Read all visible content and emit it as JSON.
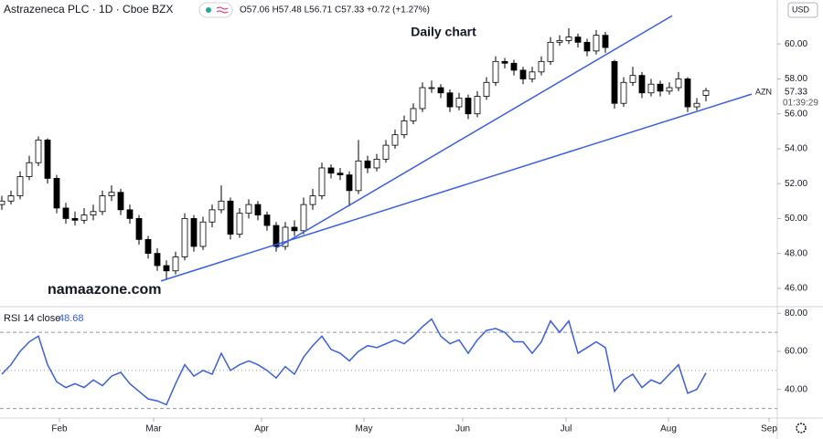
{
  "chart_data": {
    "type": "candlestick",
    "title": "Astrazeneca PLC · 1D · Cboe BZX",
    "header_values": "O57.06 H57.48 L56.71 C57.33 +0.72 (+1.27%)",
    "annotation": "Daily chart",
    "watermark": "namaazone.com",
    "currency": "USD",
    "symbol_label": "AZN",
    "countdown": "01:39:29",
    "up_color": "#ffffff",
    "down_color": "#000000",
    "candles": [
      [
        50.8,
        51.3,
        50.5,
        51.0
      ],
      [
        51.0,
        51.6,
        50.8,
        51.3
      ],
      [
        51.3,
        52.7,
        51.1,
        52.4
      ],
      [
        52.4,
        53.6,
        52.2,
        53.2
      ],
      [
        53.2,
        54.7,
        53.0,
        54.5
      ],
      [
        54.5,
        54.6,
        52.0,
        52.3
      ],
      [
        52.3,
        52.5,
        50.3,
        50.6
      ],
      [
        50.6,
        50.9,
        49.7,
        50.0
      ],
      [
        50.0,
        50.4,
        49.6,
        49.9
      ],
      [
        49.9,
        50.6,
        49.7,
        50.2
      ],
      [
        50.2,
        50.8,
        49.9,
        50.4
      ],
      [
        50.4,
        51.6,
        50.2,
        51.3
      ],
      [
        51.3,
        51.9,
        51.0,
        51.5
      ],
      [
        51.5,
        51.7,
        50.2,
        50.5
      ],
      [
        50.5,
        50.8,
        49.7,
        50.0
      ],
      [
        50.0,
        50.2,
        48.5,
        48.8
      ],
      [
        48.8,
        49.0,
        47.7,
        48.0
      ],
      [
        48.0,
        48.3,
        47.0,
        47.3
      ],
      [
        47.3,
        47.6,
        46.5,
        47.0
      ],
      [
        47.0,
        48.1,
        46.8,
        47.8
      ],
      [
        47.8,
        50.3,
        47.6,
        50.0
      ],
      [
        50.0,
        50.2,
        48.1,
        48.4
      ],
      [
        48.4,
        50.1,
        48.2,
        49.8
      ],
      [
        49.8,
        50.8,
        49.5,
        50.5
      ],
      [
        50.5,
        51.9,
        50.3,
        51.0
      ],
      [
        51.0,
        51.2,
        48.8,
        49.1
      ],
      [
        49.1,
        50.6,
        48.9,
        50.3
      ],
      [
        50.3,
        51.1,
        50.0,
        50.8
      ],
      [
        50.8,
        51.0,
        49.9,
        50.2
      ],
      [
        50.2,
        50.4,
        49.3,
        49.6
      ],
      [
        49.6,
        49.8,
        48.1,
        48.4
      ],
      [
        48.4,
        49.8,
        48.2,
        49.5
      ],
      [
        49.5,
        49.9,
        49.0,
        49.3
      ],
      [
        49.3,
        51.2,
        49.1,
        50.8
      ],
      [
        50.8,
        51.7,
        50.5,
        51.3
      ],
      [
        51.3,
        53.2,
        51.1,
        52.9
      ],
      [
        52.9,
        53.1,
        52.3,
        52.6
      ],
      [
        52.6,
        52.9,
        52.2,
        52.5
      ],
      [
        52.5,
        52.7,
        50.7,
        51.6
      ],
      [
        51.6,
        54.5,
        51.4,
        53.3
      ],
      [
        53.3,
        53.6,
        52.6,
        52.9
      ],
      [
        52.9,
        53.7,
        52.7,
        53.4
      ],
      [
        53.4,
        54.5,
        53.2,
        54.2
      ],
      [
        54.2,
        55.1,
        54.0,
        54.8
      ],
      [
        54.8,
        55.9,
        54.6,
        55.6
      ],
      [
        55.6,
        56.6,
        55.4,
        56.3
      ],
      [
        56.3,
        57.8,
        56.1,
        57.5
      ],
      [
        57.5,
        57.9,
        57.2,
        57.5
      ],
      [
        57.5,
        57.7,
        56.9,
        57.2
      ],
      [
        57.2,
        57.4,
        56.1,
        56.4
      ],
      [
        56.4,
        57.2,
        56.2,
        56.9
      ],
      [
        56.9,
        57.1,
        55.7,
        56.0
      ],
      [
        56.0,
        57.3,
        55.8,
        57.0
      ],
      [
        57.0,
        58.1,
        56.8,
        57.8
      ],
      [
        57.8,
        59.3,
        57.6,
        59.0
      ],
      [
        59.0,
        59.2,
        58.6,
        58.9
      ],
      [
        58.9,
        59.1,
        58.2,
        58.5
      ],
      [
        58.5,
        58.7,
        57.7,
        58.0
      ],
      [
        58.0,
        58.7,
        57.8,
        58.4
      ],
      [
        58.4,
        59.3,
        58.2,
        59.0
      ],
      [
        59.0,
        60.4,
        58.8,
        60.1
      ],
      [
        60.1,
        60.5,
        59.9,
        60.2
      ],
      [
        60.2,
        60.9,
        60.0,
        60.4
      ],
      [
        60.4,
        60.6,
        59.8,
        60.1
      ],
      [
        60.1,
        60.3,
        59.3,
        59.6
      ],
      [
        59.6,
        60.8,
        59.4,
        60.5
      ],
      [
        60.5,
        60.7,
        59.5,
        59.8
      ],
      [
        59.0,
        59.1,
        56.3,
        56.6
      ],
      [
        56.6,
        58.1,
        56.4,
        57.8
      ],
      [
        57.8,
        58.7,
        57.6,
        58.2
      ],
      [
        58.2,
        58.4,
        56.9,
        57.2
      ],
      [
        57.2,
        58.0,
        57.0,
        57.7
      ],
      [
        57.7,
        57.9,
        57.0,
        57.3
      ],
      [
        57.3,
        57.8,
        57.1,
        57.5
      ],
      [
        57.5,
        58.4,
        57.3,
        58.0
      ],
      [
        58.0,
        58.1,
        56.1,
        56.4
      ],
      [
        56.4,
        56.9,
        56.2,
        56.6
      ],
      [
        57.06,
        57.48,
        56.71,
        57.33
      ]
    ],
    "ylim": [
      45,
      62
    ],
    "yticks": [
      {
        "value": 46,
        "label": "46.00"
      },
      {
        "value": 48,
        "label": "48.00"
      },
      {
        "value": 50,
        "label": "50.00"
      },
      {
        "value": 52,
        "label": "52.00"
      },
      {
        "value": 54,
        "label": "54.00"
      },
      {
        "value": 56,
        "label": "56.00"
      },
      {
        "value": 58,
        "label": "58.00"
      },
      {
        "value": 60,
        "label": "60.00"
      }
    ],
    "xticks": [
      {
        "value": 6.3,
        "label": "Feb"
      },
      {
        "value": 16.6,
        "label": "Mar"
      },
      {
        "value": 28.4,
        "label": "Apr"
      },
      {
        "value": 39.6,
        "label": "May"
      },
      {
        "value": 50.4,
        "label": "Jun"
      },
      {
        "value": 61.7,
        "label": "Jul"
      },
      {
        "value": 72.9,
        "label": "Aug"
      },
      {
        "value": 83.9,
        "label": "Sep"
      }
    ],
    "trend_lines": [
      {
        "from": [
          17.4,
          46.42
        ],
        "to": [
          82,
          57.13
        ],
        "color": "#3a5fe5"
      },
      {
        "from": [
          30,
          48.3
        ],
        "to": [
          73.3,
          61.62
        ],
        "color": "#3a5fe5"
      }
    ],
    "rsi": {
      "label": "RSI 14 close",
      "color": "#3a5fe5",
      "values": [
        48,
        53,
        60,
        65,
        68,
        53,
        44,
        41,
        43,
        41,
        45,
        42,
        47,
        49,
        43,
        39,
        35,
        34,
        32,
        43,
        53,
        47,
        50,
        48,
        59,
        50,
        53,
        55,
        53,
        50,
        46,
        52,
        48,
        57,
        63,
        68,
        61,
        59,
        55,
        60,
        63,
        62,
        64,
        66,
        64,
        68,
        73,
        77,
        68,
        64,
        66,
        59,
        66,
        71,
        72,
        70,
        65,
        65,
        59,
        65,
        76,
        70,
        76,
        59,
        62,
        65,
        62,
        39,
        45,
        48,
        41,
        45,
        43,
        48,
        53,
        38,
        40,
        48.68
      ],
      "ylim": [
        25,
        83
      ],
      "yticks": [
        {
          "value": 40,
          "label": "40.00"
        },
        {
          "value": 60,
          "label": "60.00"
        },
        {
          "value": 80,
          "label": "80.00"
        }
      ],
      "levels": [
        70,
        50,
        30
      ]
    }
  }
}
